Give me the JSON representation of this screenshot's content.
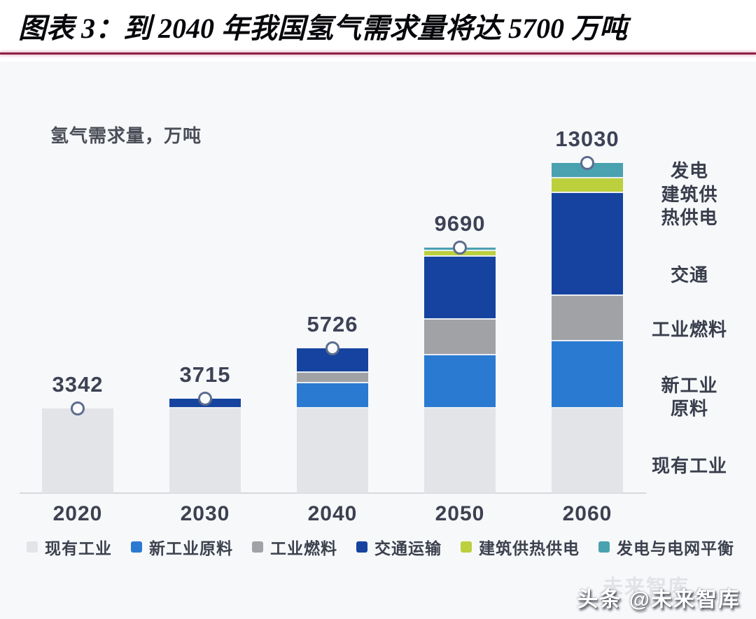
{
  "header": {
    "title": "图表 3：到 2040 年我国氢气需求量将达 5700 万吨"
  },
  "chart_data": {
    "type": "bar",
    "stacked": true,
    "ylabel": "氢气需求量，万吨",
    "unit": "万吨",
    "categories": [
      "2020",
      "2030",
      "2040",
      "2050",
      "2060"
    ],
    "totals": [
      3342,
      3715,
      5726,
      9690,
      13030
    ],
    "value_labels": [
      "3342",
      "3715",
      "5726",
      "9690",
      "13030"
    ],
    "series": [
      {
        "name": "现有工业",
        "color": "#e3e4e7",
        "values": [
          3342,
          3342,
          3342,
          3342,
          3342
        ]
      },
      {
        "name": "新工业原料",
        "color": "#2a7ad1",
        "values": [
          0,
          0,
          1000,
          2100,
          2652
        ]
      },
      {
        "name": "工业燃料",
        "color": "#a1a2a6",
        "values": [
          0,
          0,
          400,
          1400,
          1800
        ]
      },
      {
        "name": "交通运输",
        "color": "#15439f",
        "values": [
          0,
          373,
          984,
          2500,
          4051
        ]
      },
      {
        "name": "建筑供热供电",
        "color": "#bccf3d",
        "values": [
          0,
          0,
          0,
          200,
          585
        ]
      },
      {
        "name": "发电与电网平衡",
        "color": "#4aa1b0",
        "values": [
          0,
          0,
          0,
          148,
          600
        ]
      }
    ],
    "right_segment_labels": [
      "发电",
      "建筑供\n热供电",
      "交通",
      "工业燃料",
      "新工业\n原料",
      "现有工业"
    ],
    "point_marker": "open-circle",
    "legend_position": "bottom",
    "gridlines": false,
    "ylim": [
      0,
      13030
    ]
  },
  "watermark": {
    "front": "头条 @未来智库",
    "ghost": "未来智库"
  },
  "colors": {
    "title_underline": "#8e2142",
    "axis_line": "#d6d8db",
    "marker_stroke": "#5d6d8e",
    "text_dark": "#3d4255",
    "panel_background": "#f7f8fa"
  }
}
